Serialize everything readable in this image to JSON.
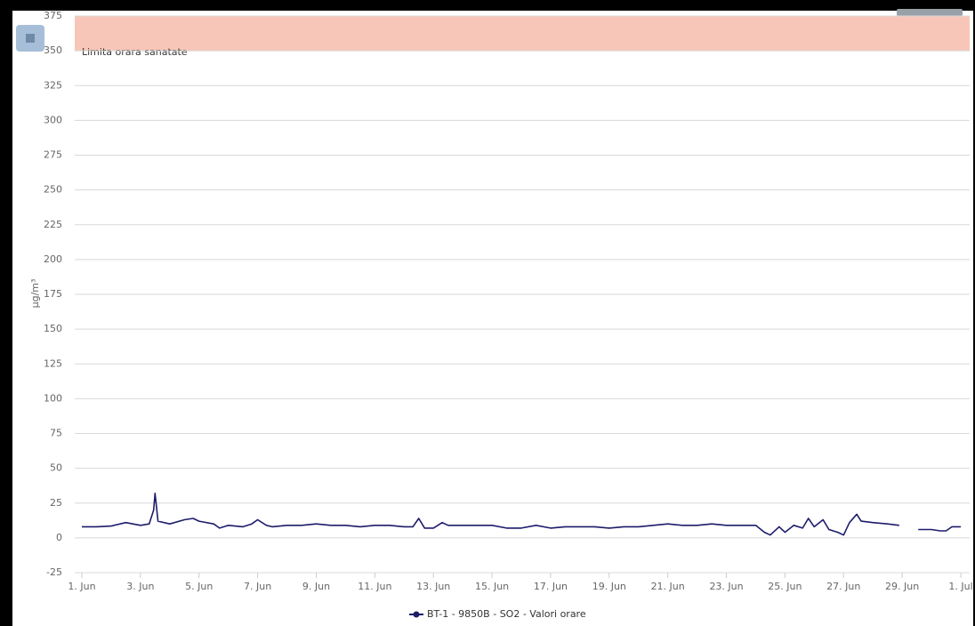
{
  "chart_data": {
    "type": "line",
    "y_label": "µg/m³",
    "xlim": [
      0,
      30
    ],
    "xticks": [
      {
        "value": 0,
        "label": "1. Jun"
      },
      {
        "value": 2,
        "label": "3. Jun"
      },
      {
        "value": 4,
        "label": "5. Jun"
      },
      {
        "value": 6,
        "label": "7. Jun"
      },
      {
        "value": 8,
        "label": "9. Jun"
      },
      {
        "value": 10,
        "label": "11. Jun"
      },
      {
        "value": 12,
        "label": "13. Jun"
      },
      {
        "value": 14,
        "label": "15. Jun"
      },
      {
        "value": 16,
        "label": "17. Jun"
      },
      {
        "value": 18,
        "label": "19. Jun"
      },
      {
        "value": 20,
        "label": "21. Jun"
      },
      {
        "value": 22,
        "label": "23. Jun"
      },
      {
        "value": 24,
        "label": "25. Jun"
      },
      {
        "value": 26,
        "label": "27. Jun"
      },
      {
        "value": 28,
        "label": "29. Jun"
      },
      {
        "value": 30,
        "label": "1. Jul"
      }
    ],
    "ylim": [
      -25,
      375
    ],
    "yticks": [
      -25,
      0,
      25,
      50,
      75,
      100,
      125,
      150,
      175,
      200,
      225,
      250,
      275,
      300,
      325,
      350,
      375
    ],
    "grid": true,
    "plot_bands": [
      {
        "from": 350,
        "to": 375,
        "label": "Limita orara sanatate",
        "color": "#f8c6b8"
      }
    ],
    "x": [
      0,
      0.5,
      1,
      1.5,
      2,
      2.3,
      2.45,
      2.5,
      2.6,
      3,
      3.5,
      3.8,
      4,
      4.5,
      4.7,
      5,
      5.5,
      5.8,
      6,
      6.3,
      6.5,
      7,
      7.5,
      8,
      8.5,
      9,
      9.5,
      10,
      10.5,
      11,
      11.3,
      11.5,
      11.7,
      12,
      12.3,
      12.5,
      13,
      13.5,
      14,
      14.5,
      15,
      15.5,
      16,
      16.5,
      17,
      17.5,
      18,
      18.5,
      19,
      19.5,
      20,
      20.5,
      21,
      21.5,
      22,
      22.5,
      23,
      23.3,
      23.5,
      23.8,
      24,
      24.3,
      24.6,
      24.8,
      25,
      25.3,
      25.5,
      25.8,
      26,
      26.2,
      26.45,
      26.6,
      27,
      27.5,
      27.9,
      28.2,
      28.55,
      29,
      29.3,
      29.5,
      29.7,
      30
    ],
    "series": [
      {
        "name": "BT-1 - 9850B - SO2 - Valori orare",
        "color": "#1c1c6b",
        "values": [
          8,
          8,
          8.5,
          11,
          9,
          10,
          20,
          32,
          12,
          10,
          13,
          14,
          12,
          10,
          7,
          9,
          8,
          10,
          13,
          9,
          8,
          9,
          9,
          10,
          9,
          9,
          8,
          9,
          9,
          8,
          8,
          14,
          7,
          7,
          11,
          9,
          9,
          9,
          9,
          7,
          7,
          9,
          7,
          8,
          8,
          8,
          7,
          8,
          8,
          9,
          10,
          9,
          9,
          10,
          9,
          9,
          9,
          4,
          2,
          8,
          4,
          9,
          7,
          14,
          8,
          13,
          6,
          4,
          2,
          11,
          17,
          12,
          11,
          10,
          9,
          null,
          6,
          6,
          5,
          5,
          8,
          8
        ]
      }
    ],
    "legend": "bottom"
  }
}
